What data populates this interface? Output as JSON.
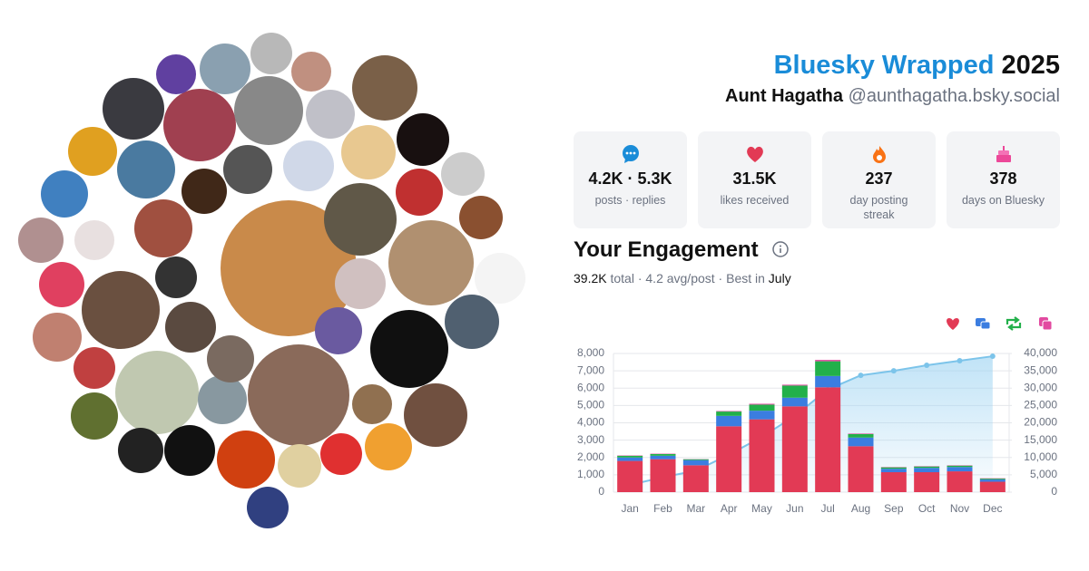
{
  "header": {
    "title": "Bluesky Wrapped",
    "year": "2025",
    "name": "Aunt Hagatha",
    "handle": "@aunthagatha.bsky.social"
  },
  "stats": [
    {
      "value": "4.2K · 5.3K",
      "label": "posts · replies"
    },
    {
      "value": "31.5K",
      "label": "likes received"
    },
    {
      "value": "237",
      "label": "day posting streak"
    },
    {
      "value": "378",
      "label": "days on Bluesky"
    }
  ],
  "engagement": {
    "title": "Your Engagement",
    "total": "39.2K",
    "summary": "total · 4.2 avg/post · Best in",
    "best_month": "July"
  },
  "chart_data": {
    "type": "bar",
    "stacked": true,
    "categories": [
      "Jan",
      "Feb",
      "Mar",
      "Apr",
      "May",
      "Jun",
      "Jul",
      "Aug",
      "Sep",
      "Oct",
      "Nov",
      "Dec"
    ],
    "series": [
      {
        "color": "#e23a55",
        "values": [
          1800,
          1900,
          1550,
          3800,
          4200,
          4950,
          6050,
          2650,
          1150,
          1150,
          1200,
          600
        ]
      },
      {
        "color": "#3b7de0",
        "values": [
          200,
          200,
          300,
          600,
          500,
          500,
          650,
          500,
          200,
          250,
          250,
          130
        ]
      },
      {
        "color": "#22b04a",
        "values": [
          100,
          100,
          50,
          250,
          350,
          700,
          850,
          200,
          80,
          80,
          80,
          50
        ]
      },
      {
        "color": "#e24aa0",
        "values": [
          20,
          20,
          10,
          30,
          50,
          50,
          80,
          30,
          20,
          20,
          20,
          20
        ]
      },
      {
        "type": "line",
        "axis": "y2",
        "area": true,
        "color": "#7cc4ea",
        "values": [
          2100,
          4300,
          6200,
          10800,
          15900,
          22000,
          29600,
          33700,
          35000,
          36600,
          37900,
          39200
        ]
      }
    ],
    "ylim": [
      0,
      8000
    ],
    "yticks": [
      0,
      {
        "value": 1000,
        "label": "1,000"
      },
      {
        "value": 2000,
        "label": "2,000"
      },
      {
        "value": 3000,
        "label": "3,000"
      },
      {
        "value": 4000,
        "label": "4,000"
      },
      {
        "value": 5000,
        "label": "5,000"
      },
      {
        "value": 6000,
        "label": "6,000"
      },
      {
        "value": 7000,
        "label": "7,000"
      },
      {
        "value": 8000,
        "label": "8,000"
      }
    ],
    "y2lim": [
      0,
      40000
    ],
    "y2ticks": [
      0,
      {
        "value": 5000,
        "label": "5,000"
      },
      {
        "value": 10000,
        "label": "10,000"
      },
      {
        "value": 15000,
        "label": "15,000"
      },
      {
        "value": 20000,
        "label": "20,000"
      },
      {
        "value": 25000,
        "label": "25,000"
      },
      {
        "value": 30000,
        "label": "30,000"
      },
      {
        "value": 35000,
        "label": "35,000"
      },
      {
        "value": 40000,
        "label": "40,000"
      }
    ],
    "grid": true
  }
}
